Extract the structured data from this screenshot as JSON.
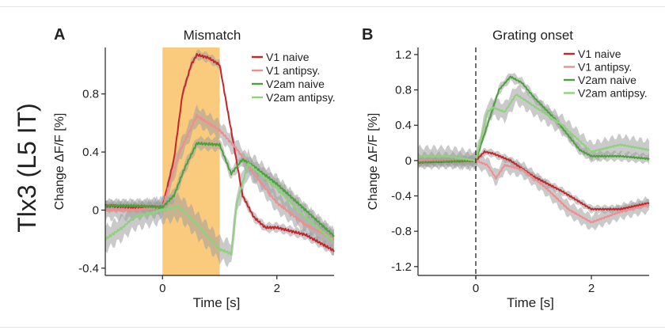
{
  "row_label": "Tlx3 (L5 IT)",
  "chart_data": [
    {
      "type": "line",
      "panel_letter": "A",
      "title": "Mismatch",
      "xlabel": "Time [s]",
      "ylabel": "Change ΔF/F [%]",
      "xlim": [
        -1,
        3
      ],
      "ylim": [
        -0.45,
        1.12
      ],
      "xticks": [
        0,
        2
      ],
      "xtick_labels": [
        "0",
        "2"
      ],
      "yticks": [
        -0.4,
        0,
        0.4,
        0.8
      ],
      "ytick_labels": [
        "-0.4",
        "0",
        "0.4",
        "0.8"
      ],
      "stimulus_window": {
        "start": 0,
        "end": 1,
        "color": "#f9c46f"
      },
      "legend_position": "top-right",
      "series": [
        {
          "name": "V1 naive",
          "color": "#c4262c",
          "band": 0.03,
          "x": [
            -1,
            -0.5,
            0,
            0.2,
            0.35,
            0.5,
            0.6,
            0.8,
            1.0,
            1.2,
            1.4,
            1.6,
            1.8,
            2.0,
            2.5,
            3.0
          ],
          "y": [
            0.03,
            0.02,
            0.02,
            0.35,
            0.8,
            1.0,
            1.07,
            1.05,
            1.0,
            0.55,
            0.1,
            -0.05,
            -0.12,
            -0.12,
            -0.17,
            -0.28
          ]
        },
        {
          "name": "V1 antipsy.",
          "color": "#f08d8e",
          "band": 0.06,
          "x": [
            -1,
            -0.5,
            0,
            0.3,
            0.6,
            1.0,
            1.3,
            1.6,
            2.0,
            2.5,
            3.0
          ],
          "y": [
            0.0,
            0.0,
            0.02,
            0.4,
            0.65,
            0.55,
            0.42,
            0.25,
            0.05,
            -0.1,
            -0.2
          ]
        },
        {
          "name": "V2am naive",
          "color": "#4aa33a",
          "band": 0.04,
          "x": [
            -1,
            -0.5,
            0,
            0.2,
            0.4,
            0.6,
            1.0,
            1.2,
            1.4,
            1.6,
            2.0,
            2.5,
            3.0
          ],
          "y": [
            0.03,
            0.03,
            0.02,
            0.1,
            0.3,
            0.46,
            0.45,
            0.25,
            0.35,
            0.3,
            0.18,
            0.0,
            -0.18
          ]
        },
        {
          "name": "V2am antipsy.",
          "color": "#8ed27c",
          "band": 0.08,
          "x": [
            -1,
            -0.7,
            -0.5,
            0,
            0.3,
            0.6,
            1.0,
            1.2,
            1.3,
            1.5,
            2.0,
            2.5,
            3.0
          ],
          "y": [
            -0.2,
            -0.12,
            -0.05,
            0.0,
            0.02,
            -0.1,
            -0.27,
            -0.3,
            0.05,
            0.32,
            0.15,
            -0.05,
            -0.22
          ]
        }
      ]
    },
    {
      "type": "line",
      "panel_letter": "B",
      "title": "Grating onset",
      "xlabel": "Time [s]",
      "ylabel": "Change ΔF/F [%]",
      "xlim": [
        -1,
        3
      ],
      "ylim": [
        -1.3,
        1.28
      ],
      "xticks": [
        0,
        2
      ],
      "xtick_labels": [
        "0",
        "2"
      ],
      "yticks": [
        -1.2,
        -0.8,
        -0.4,
        0,
        0.4,
        0.8,
        1.2
      ],
      "ytick_labels": [
        "-1.2",
        "-0.8",
        "-0.4",
        "0",
        "0.4",
        "0.8",
        "1.2"
      ],
      "onset_line": 0,
      "legend_position": "top-right",
      "series": [
        {
          "name": "V1 naive",
          "color": "#c4262c",
          "band": 0.04,
          "x": [
            -1,
            -0.5,
            0,
            0.15,
            0.3,
            0.6,
            1.0,
            1.5,
            2.0,
            2.5,
            3.0
          ],
          "y": [
            -0.02,
            -0.01,
            0.0,
            0.1,
            0.08,
            0.0,
            -0.18,
            -0.35,
            -0.55,
            -0.55,
            -0.48
          ]
        },
        {
          "name": "V1 antipsy.",
          "color": "#f08d8e",
          "band": 0.08,
          "x": [
            -1,
            -0.5,
            0,
            0.2,
            0.35,
            0.5,
            0.8,
            1.2,
            1.6,
            2.0,
            2.5,
            3.0
          ],
          "y": [
            0.0,
            0.0,
            0.0,
            -0.05,
            -0.2,
            -0.05,
            -0.1,
            -0.3,
            -0.55,
            -0.7,
            -0.58,
            -0.5
          ]
        },
        {
          "name": "V2am naive",
          "color": "#4aa33a",
          "band": 0.05,
          "x": [
            -1,
            -0.5,
            0,
            0.2,
            0.4,
            0.6,
            0.8,
            1.0,
            1.4,
            1.8,
            2.0,
            2.5,
            3.0
          ],
          "y": [
            -0.02,
            -0.01,
            0.0,
            0.4,
            0.8,
            0.95,
            0.88,
            0.72,
            0.45,
            0.12,
            0.05,
            0.05,
            0.02
          ]
        },
        {
          "name": "V2am antipsy.",
          "color": "#8ed27c",
          "band": 0.1,
          "x": [
            -1,
            -0.5,
            0,
            0.2,
            0.3,
            0.5,
            0.7,
            1.0,
            1.5,
            2.0,
            2.5,
            3.0
          ],
          "y": [
            0.05,
            0.05,
            0.0,
            0.55,
            0.6,
            0.55,
            0.75,
            0.62,
            0.4,
            0.1,
            0.18,
            0.12
          ]
        }
      ]
    }
  ]
}
